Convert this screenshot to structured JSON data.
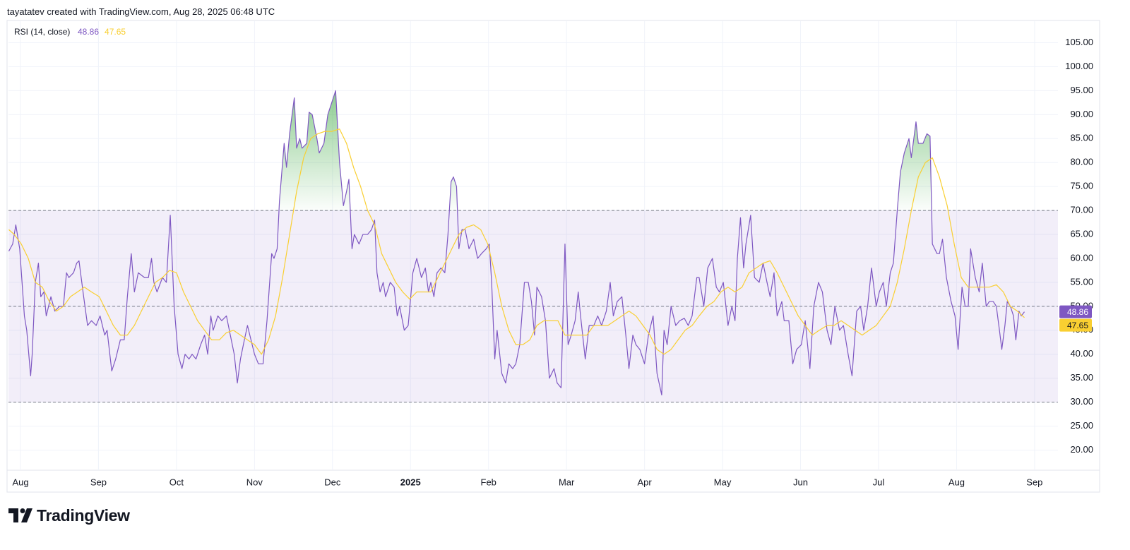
{
  "header": "tayatatev created with TradingView.com, Aug 28, 2025 06:48 UTC",
  "brand": "TradingView",
  "chart_data": {
    "type": "line",
    "title": "RSI (14, close)",
    "xlim": [
      -0.154,
      13.3
    ],
    "xticks": [
      {
        "value": 0,
        "label": "Aug"
      },
      {
        "value": 1,
        "label": "Sep"
      },
      {
        "value": 2,
        "label": "Oct"
      },
      {
        "value": 3,
        "label": "Nov"
      },
      {
        "value": 4,
        "label": "Dec"
      },
      {
        "value": 5,
        "label": "2025"
      },
      {
        "value": 6,
        "label": "Feb"
      },
      {
        "value": 7,
        "label": "Mar"
      },
      {
        "value": 8,
        "label": "Apr"
      },
      {
        "value": 9,
        "label": "May"
      },
      {
        "value": 10,
        "label": "Jun"
      },
      {
        "value": 11,
        "label": "Jul"
      },
      {
        "value": 12,
        "label": "Aug"
      },
      {
        "value": 13,
        "label": "Sep"
      }
    ],
    "ylim": [
      15.8,
      109.5
    ],
    "yticks": [
      {
        "value": 20,
        "label": "20.00"
      },
      {
        "value": 25,
        "label": "25.00"
      },
      {
        "value": 30,
        "label": "30.00"
      },
      {
        "value": 35,
        "label": "35.00"
      },
      {
        "value": 40,
        "label": "40.00"
      },
      {
        "value": 45,
        "label": "45.00"
      },
      {
        "value": 50,
        "label": "50.00"
      },
      {
        "value": 55,
        "label": "55.00"
      },
      {
        "value": 60,
        "label": "60.00"
      },
      {
        "value": 65,
        "label": "65.00"
      },
      {
        "value": 70,
        "label": "70.00"
      },
      {
        "value": 75,
        "label": "75.00"
      },
      {
        "value": 80,
        "label": "80.00"
      },
      {
        "value": 85,
        "label": "85.00"
      },
      {
        "value": 90,
        "label": "90.00"
      },
      {
        "value": 95,
        "label": "95.00"
      },
      {
        "value": 100,
        "label": "100.00"
      },
      {
        "value": 105,
        "label": "105.00"
      }
    ],
    "grid": true,
    "bands": {
      "upper": 70,
      "middle": 50,
      "lower": 30
    },
    "band_color": "#7e57c2",
    "overbought_fill": "#4caf50",
    "series": [
      {
        "color": "#7e57c2",
        "x": [
          -0.15,
          -0.1,
          -0.06,
          -0.01,
          0.05,
          0.08,
          0.13,
          0.15,
          0.19,
          0.23,
          0.26,
          0.3,
          0.33,
          0.39,
          0.44,
          0.5,
          0.55,
          0.59,
          0.62,
          0.68,
          0.72,
          0.75,
          0.81,
          0.86,
          0.91,
          0.97,
          1.02,
          1.08,
          1.11,
          1.17,
          1.22,
          1.28,
          1.33,
          1.37,
          1.42,
          1.46,
          1.51,
          1.59,
          1.64,
          1.68,
          1.71,
          1.75,
          1.82,
          1.87,
          1.92,
          1.97,
          2.02,
          2.07,
          2.11,
          2.16,
          2.2,
          2.25,
          2.31,
          2.36,
          2.4,
          2.44,
          2.47,
          2.53,
          2.58,
          2.64,
          2.69,
          2.74,
          2.78,
          2.82,
          2.87,
          2.91,
          2.94,
          3.0,
          3.05,
          3.11,
          3.16,
          3.22,
          3.25,
          3.29,
          3.32,
          3.38,
          3.41,
          3.45,
          3.51,
          3.54,
          3.58,
          3.61,
          3.67,
          3.7,
          3.74,
          3.8,
          3.83,
          3.89,
          3.94,
          3.99,
          4.04,
          4.09,
          4.14,
          4.18,
          4.21,
          4.25,
          4.28,
          4.34,
          4.39,
          4.45,
          4.5,
          4.54,
          4.57,
          4.61,
          4.65,
          4.68,
          4.74,
          4.79,
          4.83,
          4.86,
          4.92,
          4.97,
          5.03,
          5.08,
          5.14,
          5.19,
          5.23,
          5.26,
          5.3,
          5.34,
          5.39,
          5.44,
          5.48,
          5.52,
          5.55,
          5.59,
          5.62,
          5.66,
          5.7,
          5.75,
          5.81,
          5.86,
          5.91,
          5.97,
          6.01,
          6.04,
          6.08,
          6.11,
          6.17,
          6.22,
          6.26,
          6.31,
          6.35,
          6.4,
          6.46,
          6.51,
          6.55,
          6.59,
          6.62,
          6.68,
          6.73,
          6.78,
          6.84,
          6.88,
          6.93,
          6.98,
          7.02,
          7.06,
          7.11,
          7.15,
          7.18,
          7.24,
          7.29,
          7.35,
          7.4,
          7.45,
          7.51,
          7.56,
          7.6,
          7.65,
          7.71,
          7.76,
          7.8,
          7.85,
          7.89,
          7.94,
          8.0,
          8.05,
          8.11,
          8.16,
          8.22,
          8.25,
          8.29,
          8.34,
          8.4,
          8.45,
          8.51,
          8.56,
          8.61,
          8.67,
          8.7,
          8.76,
          8.81,
          8.87,
          8.92,
          8.96,
          9.01,
          9.07,
          9.12,
          9.16,
          9.19,
          9.23,
          9.27,
          9.3,
          9.36,
          9.41,
          9.47,
          9.52,
          9.57,
          9.61,
          9.66,
          9.7,
          9.76,
          9.79,
          9.85,
          9.9,
          9.95,
          10.01,
          10.06,
          10.12,
          10.17,
          10.23,
          10.28,
          10.34,
          10.39,
          10.44,
          10.5,
          10.55,
          10.61,
          10.66,
          10.72,
          10.77,
          10.81,
          10.86,
          10.91,
          10.97,
          11.01,
          11.06,
          11.1,
          11.15,
          11.19,
          11.24,
          11.28,
          11.33,
          11.39,
          11.42,
          11.48,
          11.51,
          11.57,
          11.62,
          11.66,
          11.69,
          11.75,
          11.78,
          11.82,
          11.87,
          11.93,
          11.98,
          12.02,
          12.07,
          12.11,
          12.15,
          12.18,
          12.24,
          12.29,
          12.33,
          12.38,
          12.42,
          12.47,
          12.51,
          12.55,
          12.58,
          12.62,
          12.65,
          12.69,
          12.73,
          12.76,
          12.8,
          12.83,
          12.87
        ],
        "values": [
          61.5,
          63,
          67,
          62,
          48,
          45,
          35.5,
          40,
          55,
          59,
          52,
          53,
          48,
          52,
          49,
          50,
          50,
          57,
          56,
          57,
          59,
          59.5,
          52,
          46,
          47,
          46,
          48,
          44,
          45,
          36.5,
          39,
          43,
          43,
          52,
          61,
          53,
          57,
          56,
          56,
          60,
          55,
          53,
          56,
          55,
          69,
          50,
          40,
          37,
          40,
          39,
          40,
          39,
          42,
          44,
          40,
          48,
          45,
          48,
          47,
          48,
          44,
          40,
          34,
          39,
          43,
          46,
          44,
          40,
          38,
          38,
          47,
          61,
          60,
          62,
          72,
          84,
          79,
          86,
          93.5,
          83,
          85,
          83,
          84,
          90.5,
          90,
          85,
          82,
          84,
          90,
          92.5,
          95,
          80,
          71,
          74,
          76.5,
          62,
          65,
          63,
          65,
          65,
          66,
          68,
          57,
          53,
          55,
          52,
          55,
          54,
          48,
          50,
          45,
          46,
          57,
          60,
          56,
          58,
          53,
          55,
          52,
          57,
          58,
          57,
          65,
          76,
          77,
          75,
          62,
          66,
          66,
          62,
          64,
          60,
          61,
          62,
          63,
          55,
          39,
          45,
          36,
          34,
          38,
          37,
          38,
          42,
          55,
          55,
          51,
          44,
          54,
          52,
          47,
          35,
          37,
          34,
          33,
          63,
          42,
          44,
          47,
          53,
          48,
          39,
          46,
          46,
          48,
          46,
          49,
          55,
          48,
          51,
          52,
          44,
          37,
          44,
          42,
          41,
          38,
          44,
          48,
          36,
          31.5,
          45,
          42,
          50,
          46,
          47,
          47.5,
          46,
          48,
          56,
          56,
          50,
          58,
          60,
          54,
          53,
          55,
          46,
          50,
          47,
          60,
          68.5,
          58,
          63,
          69,
          56,
          55,
          59,
          55,
          52,
          57,
          48,
          51,
          47,
          47,
          38,
          41,
          42,
          47,
          37,
          50,
          55,
          53,
          45,
          42,
          50,
          45,
          46,
          40,
          35.5,
          49,
          50,
          45,
          50,
          58,
          50,
          53,
          55,
          50,
          57,
          59,
          70,
          78,
          82,
          85,
          81,
          88.5,
          84,
          84,
          86,
          85.5,
          63,
          61,
          61,
          64,
          56,
          51,
          48,
          41,
          54,
          50,
          50,
          62,
          56,
          53,
          59,
          50,
          51,
          51,
          50,
          45,
          41,
          46,
          51,
          50,
          48,
          43,
          49,
          48,
          48.86
        ]
      },
      {
        "color": "#f9cf31",
        "x": [
          -0.15,
          -0.08,
          0.01,
          0.1,
          0.19,
          0.28,
          0.37,
          0.46,
          0.55,
          0.64,
          0.73,
          0.82,
          0.91,
          1.01,
          1.1,
          1.19,
          1.28,
          1.37,
          1.46,
          1.55,
          1.64,
          1.73,
          1.82,
          1.91,
          2.0,
          2.09,
          2.18,
          2.27,
          2.36,
          2.45,
          2.55,
          2.64,
          2.73,
          2.82,
          2.91,
          3.0,
          3.09,
          3.18,
          3.27,
          3.36,
          3.45,
          3.54,
          3.63,
          3.72,
          3.81,
          3.9,
          3.99,
          4.09,
          4.18,
          4.27,
          4.36,
          4.45,
          4.54,
          4.63,
          4.72,
          4.81,
          4.9,
          4.99,
          5.08,
          5.17,
          5.26,
          5.35,
          5.44,
          5.53,
          5.62,
          5.72,
          5.81,
          5.9,
          5.99,
          6.08,
          6.17,
          6.26,
          6.35,
          6.44,
          6.53,
          6.62,
          6.71,
          6.8,
          6.89,
          6.98,
          7.07,
          7.16,
          7.26,
          7.35,
          7.44,
          7.53,
          7.62,
          7.71,
          7.8,
          7.89,
          7.98,
          8.07,
          8.16,
          8.25,
          8.34,
          8.43,
          8.52,
          8.61,
          8.7,
          8.8,
          8.89,
          8.98,
          9.07,
          9.16,
          9.25,
          9.34,
          9.43,
          9.52,
          9.61,
          9.7,
          9.79,
          9.88,
          9.97,
          10.06,
          10.15,
          10.24,
          10.34,
          10.43,
          10.52,
          10.61,
          10.7,
          10.79,
          10.88,
          10.97,
          11.06,
          11.15,
          11.24,
          11.33,
          11.42,
          11.51,
          11.6,
          11.69,
          11.78,
          11.88,
          11.97,
          12.06,
          12.15,
          12.24,
          12.33,
          12.42,
          12.51,
          12.6,
          12.69,
          12.78,
          12.87
        ],
        "values": [
          66,
          65,
          63,
          60,
          55,
          54,
          51,
          49,
          50,
          52,
          53,
          54,
          53,
          52,
          49,
          46,
          44,
          44,
          46,
          49,
          52,
          55,
          56,
          57.5,
          57,
          53,
          50,
          47,
          45,
          43,
          43,
          44.5,
          45,
          44,
          43,
          42,
          40,
          43,
          48,
          56,
          65,
          74,
          81,
          85,
          86,
          86.5,
          86.5,
          87,
          84,
          79,
          75,
          70,
          67,
          61,
          58,
          55,
          53,
          51.5,
          53,
          53,
          53,
          56,
          59,
          62,
          65,
          66.5,
          67,
          66,
          63,
          57,
          50,
          45,
          42,
          42,
          43,
          46,
          47,
          47,
          47,
          44,
          44,
          44,
          44,
          46,
          46,
          46,
          47,
          48,
          49,
          48,
          46,
          44,
          41,
          40,
          41,
          43,
          45,
          46,
          48,
          50,
          51,
          53,
          54,
          53,
          54,
          57,
          58,
          59,
          59.5,
          57,
          54,
          51,
          48,
          46,
          44,
          45,
          46,
          46,
          47,
          46,
          45,
          44,
          45,
          46,
          48,
          50,
          55,
          62,
          70,
          77,
          80,
          81,
          77,
          71,
          63,
          56,
          54,
          54,
          54,
          54,
          54.5,
          53,
          50,
          49,
          47.65
        ]
      }
    ]
  }
}
